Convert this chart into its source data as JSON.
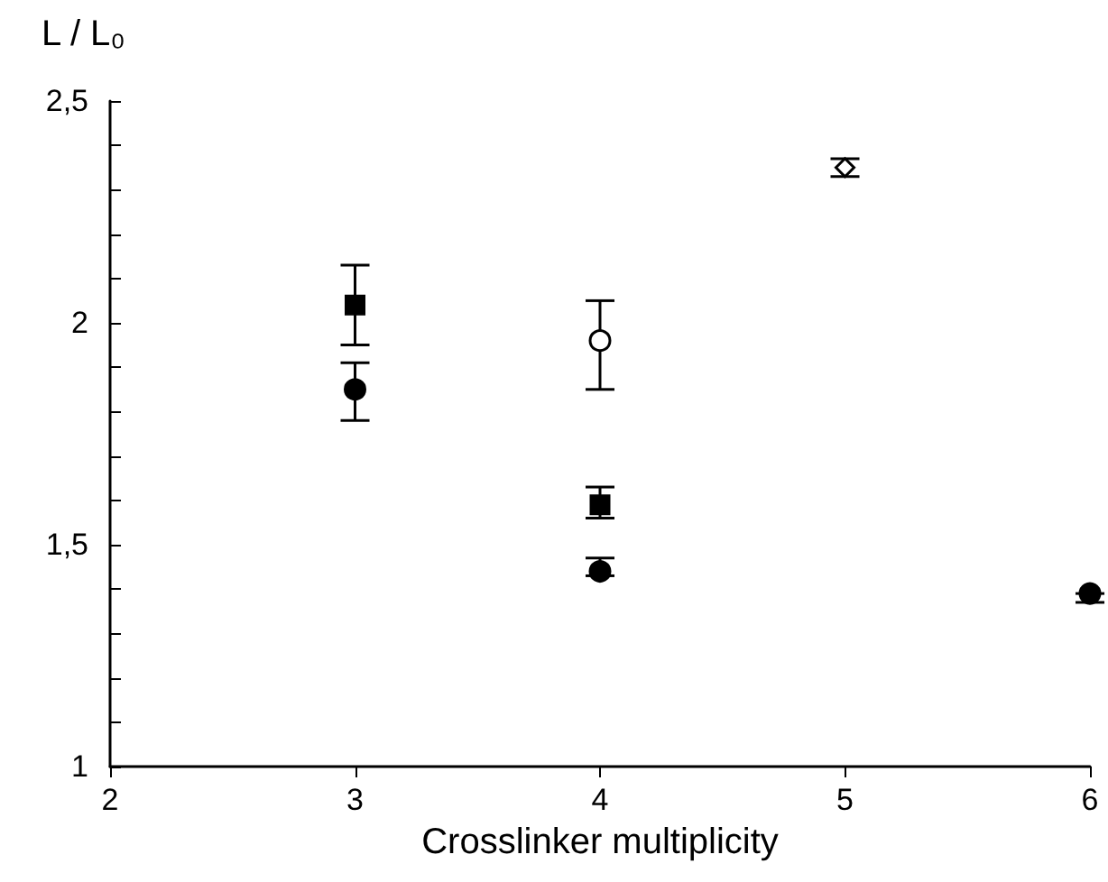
{
  "chart_data": {
    "type": "scatter",
    "xlabel": "Crosslinker multiplicity",
    "ylabel": "L / L₀",
    "xlim": [
      2,
      6
    ],
    "xticks": [
      2,
      3,
      4,
      5,
      6
    ],
    "ylim": [
      1,
      2.5
    ],
    "yticks": [
      {
        "value": 1,
        "label": "1"
      },
      {
        "value": 1.1,
        "label": null
      },
      {
        "value": 1.2,
        "label": null
      },
      {
        "value": 1.3,
        "label": null
      },
      {
        "value": 1.4,
        "label": null
      },
      {
        "value": 1.5,
        "label": "1,5"
      },
      {
        "value": 1.6,
        "label": null
      },
      {
        "value": 1.7,
        "label": null
      },
      {
        "value": 1.8,
        "label": null
      },
      {
        "value": 1.9,
        "label": null
      },
      {
        "value": 2,
        "label": "2"
      },
      {
        "value": 2.1,
        "label": null
      },
      {
        "value": 2.2,
        "label": null
      },
      {
        "value": 2.3,
        "label": null
      },
      {
        "value": 2.4,
        "label": null
      },
      {
        "value": 2.5,
        "label": "2,5"
      }
    ],
    "grid": false,
    "series": [
      {
        "color": "#000000",
        "marker": "circle",
        "x": [
          3,
          4,
          6
        ],
        "values": [
          1.85,
          1.44,
          1.39
        ],
        "errors": [
          [
            1.78,
            1.91
          ],
          [
            1.43,
            1.47
          ],
          [
            1.37,
            1.39
          ]
        ]
      },
      {
        "color": "#000000",
        "marker": "square",
        "x": [
          3,
          4
        ],
        "values": [
          2.04,
          1.59
        ],
        "errors": [
          [
            1.95,
            2.13
          ],
          [
            1.56,
            1.63
          ]
        ]
      },
      {
        "color": "#ffffff",
        "marker": "circle",
        "x": [
          4
        ],
        "values": [
          1.96
        ],
        "errors": [
          [
            1.85,
            2.05
          ]
        ]
      },
      {
        "color": "#ffffff",
        "marker": "diamond",
        "x": [
          5
        ],
        "values": [
          2.35
        ],
        "errors": [
          [
            2.33,
            2.37
          ]
        ]
      }
    ]
  }
}
